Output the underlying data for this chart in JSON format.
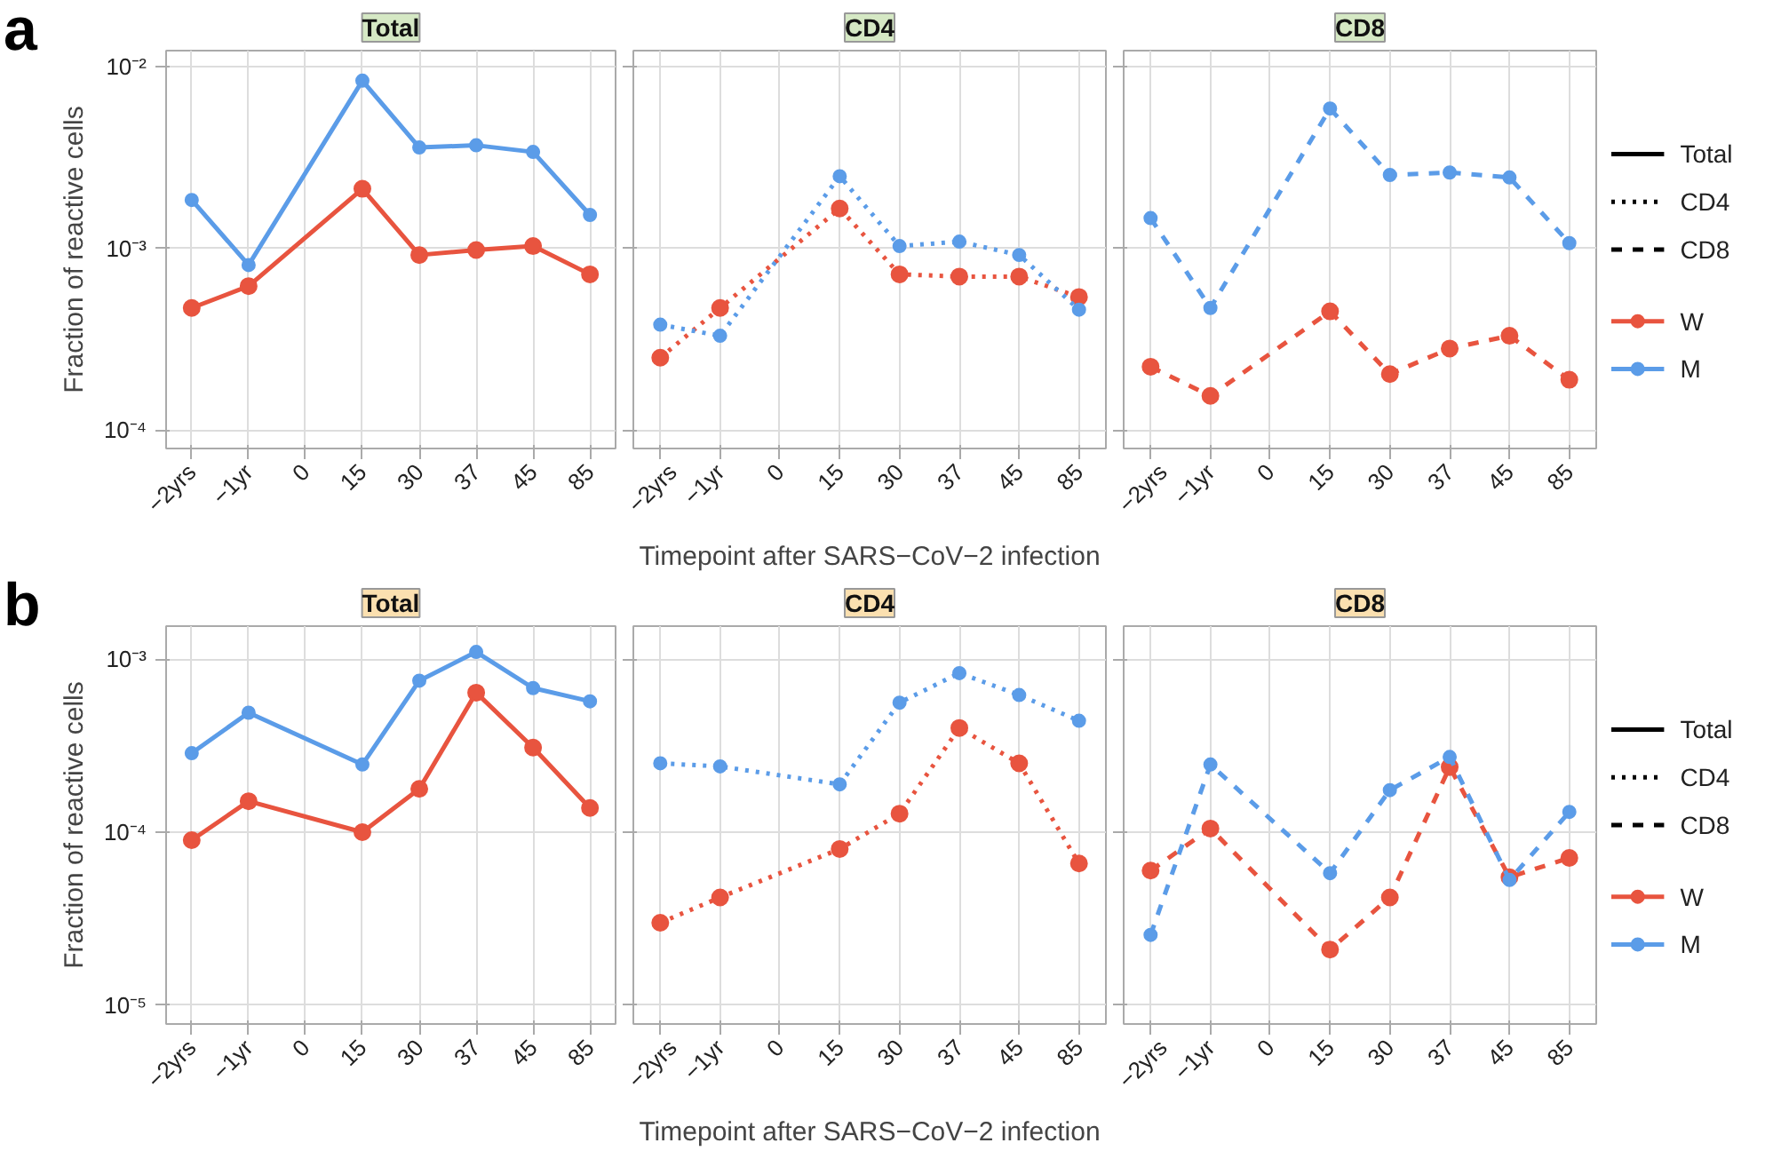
{
  "chart_data": [
    {
      "type": "line",
      "title": "Total",
      "ylabel": "Fraction of reactive cells",
      "annotations": [
        "a"
      ],
      "log": true,
      "grid": true,
      "marker": "circle",
      "line_style": "solid",
      "categories": [
        "−2yrs",
        "−1yr",
        "0",
        "15",
        "30",
        "37",
        "45",
        "85"
      ],
      "ylim": [
        7.9e-05,
        0.0123
      ],
      "yticks": [
        {
          "value": 0.0001,
          "label": "10⁻⁴"
        },
        {
          "value": 0.001,
          "label": "10⁻³"
        },
        {
          "value": 0.01,
          "label": "10⁻²"
        }
      ],
      "series": [
        {
          "color": "#e8543f",
          "values": [
            0.00047,
            0.00062,
            null,
            0.00213,
            0.00092,
            0.00098,
            0.00103,
            0.00072
          ]
        },
        {
          "color": "#5b9ce8",
          "values": [
            0.00185,
            0.00081,
            null,
            0.0084,
            0.0036,
            0.0037,
            0.0034,
            0.00153
          ]
        }
      ]
    },
    {
      "type": "line",
      "title": "CD4",
      "xlabel": "Timepoint after SARS−CoV−2 infection",
      "log": true,
      "grid": true,
      "marker": "circle",
      "line_style": "dotted",
      "tick_labels": "x",
      "categories": [
        "−2yrs",
        "−1yr",
        "0",
        "15",
        "30",
        "37",
        "45",
        "85"
      ],
      "ylim": [
        7.9e-05,
        0.0123
      ],
      "yticks": [
        {
          "value": 0.0001,
          "label": null
        },
        {
          "value": 0.001,
          "label": null
        },
        {
          "value": 0.01,
          "label": null
        }
      ],
      "series": [
        {
          "color": "#e8543f",
          "values": [
            0.00025,
            0.00047,
            null,
            0.00166,
            0.00072,
            0.0007,
            0.0007,
            0.00054
          ]
        },
        {
          "color": "#5b9ce8",
          "values": [
            0.00038,
            0.00033,
            null,
            0.0025,
            0.00103,
            0.00109,
            0.00092,
            0.00046
          ]
        }
      ]
    },
    {
      "type": "line",
      "title": "CD8",
      "log": true,
      "grid": true,
      "marker": "circle",
      "line_style": "dashed",
      "tick_labels": "x",
      "legend": "right",
      "categories": [
        "−2yrs",
        "−1yr",
        "0",
        "15",
        "30",
        "37",
        "45",
        "85"
      ],
      "ylim": [
        7.9e-05,
        0.0123
      ],
      "yticks": [
        {
          "value": 0.0001,
          "label": null
        },
        {
          "value": 0.001,
          "label": null
        },
        {
          "value": 0.01,
          "label": null
        }
      ],
      "series": [
        {
          "name": "W",
          "color": "#e8543f",
          "values": [
            0.000223,
            0.000154,
            null,
            0.00045,
            0.000203,
            0.000281,
            0.00033,
            0.000189
          ]
        },
        {
          "name": "M",
          "color": "#5b9ce8",
          "values": [
            0.00147,
            0.00047,
            null,
            0.0059,
            0.00254,
            0.00262,
            0.00246,
            0.00107
          ]
        }
      ]
    },
    {
      "type": "line",
      "title": "Total",
      "ylabel": "Fraction of reactive cells",
      "annotations": [
        "b"
      ],
      "log": true,
      "grid": true,
      "marker": "circle",
      "line_style": "solid",
      "categories": [
        "−2yrs",
        "−1yr",
        "0",
        "15",
        "30",
        "37",
        "45",
        "85"
      ],
      "ylim": [
        7.8e-06,
        0.00155
      ],
      "yticks": [
        {
          "value": 1e-05,
          "label": "10⁻⁵"
        },
        {
          "value": 0.0001,
          "label": "10⁻⁴"
        },
        {
          "value": 0.001,
          "label": "10⁻³"
        }
      ],
      "series": [
        {
          "color": "#e8543f",
          "values": [
            9e-05,
            0.000151,
            null,
            0.0001,
            0.000178,
            0.00064,
            0.000308,
            0.000138
          ]
        },
        {
          "color": "#5b9ce8",
          "values": [
            0.000286,
            0.00049,
            null,
            0.000246,
            0.00075,
            0.0011,
            0.00068,
            0.00057
          ]
        }
      ]
    },
    {
      "type": "line",
      "title": "CD4",
      "xlabel": "Timepoint after SARS−CoV−2 infection",
      "log": true,
      "grid": true,
      "marker": "circle",
      "line_style": "dotted",
      "tick_labels": "x",
      "categories": [
        "−2yrs",
        "−1yr",
        "0",
        "15",
        "30",
        "37",
        "45",
        "85"
      ],
      "ylim": [
        7.8e-06,
        0.00155
      ],
      "yticks": [
        {
          "value": 1e-05,
          "label": null
        },
        {
          "value": 0.0001,
          "label": null
        },
        {
          "value": 0.001,
          "label": null
        }
      ],
      "series": [
        {
          "color": "#e8543f",
          "values": [
            3e-05,
            4.2e-05,
            null,
            8e-05,
            0.000128,
            0.0004,
            0.00025,
            6.6e-05
          ]
        },
        {
          "color": "#5b9ce8",
          "values": [
            0.00025,
            0.00024,
            null,
            0.000189,
            0.00056,
            0.00083,
            0.00062,
            0.00044
          ]
        }
      ]
    },
    {
      "type": "line",
      "title": "CD8",
      "log": true,
      "grid": true,
      "marker": "circle",
      "line_style": "dashed",
      "tick_labels": "x",
      "legend": "right",
      "categories": [
        "−2yrs",
        "−1yr",
        "0",
        "15",
        "30",
        "37",
        "45",
        "85"
      ],
      "ylim": [
        7.8e-06,
        0.00155
      ],
      "yticks": [
        {
          "value": 1e-05,
          "label": null
        },
        {
          "value": 0.0001,
          "label": null
        },
        {
          "value": 0.001,
          "label": null
        }
      ],
      "series": [
        {
          "name": "W",
          "color": "#e8543f",
          "values": [
            6e-05,
            0.000105,
            null,
            2.1e-05,
            4.2e-05,
            0.000238,
            5.5e-05,
            7.1e-05
          ]
        },
        {
          "name": "M",
          "color": "#5b9ce8",
          "values": [
            2.55e-05,
            0.000246,
            null,
            5.8e-05,
            0.000175,
            0.000272,
            5.3e-05,
            0.000131
          ]
        }
      ]
    }
  ]
}
